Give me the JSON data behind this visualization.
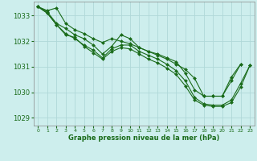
{
  "xlabel": "Graphe pression niveau de la mer (hPa)",
  "bg_color": "#cdeeed",
  "grid_color": "#b0d8d8",
  "line_color": "#1a6b1a",
  "marker_color": "#1a6b1a",
  "xlim": [
    -0.5,
    23.5
  ],
  "ylim": [
    1028.7,
    1033.55
  ],
  "yticks": [
    1029,
    1030,
    1031,
    1032,
    1033
  ],
  "xticks": [
    0,
    1,
    2,
    3,
    4,
    5,
    6,
    7,
    8,
    9,
    10,
    11,
    12,
    13,
    14,
    15,
    16,
    17,
    18,
    19,
    20,
    21,
    22,
    23
  ],
  "series": [
    [
      1033.35,
      1033.2,
      1033.3,
      1032.7,
      1032.45,
      1032.3,
      1032.1,
      1031.95,
      1032.1,
      1032.0,
      1031.9,
      1031.75,
      1031.6,
      1031.45,
      1031.3,
      1031.1,
      1030.9,
      1030.55,
      1029.85,
      1029.85,
      1029.85,
      1030.6,
      1031.1,
      null
    ],
    [
      1033.35,
      1033.15,
      1032.7,
      1032.5,
      1032.25,
      1032.1,
      1031.85,
      1031.5,
      1031.8,
      1032.25,
      1032.1,
      1031.75,
      1031.6,
      1031.5,
      1031.35,
      1031.2,
      1030.75,
      1030.1,
      1029.85,
      1029.85,
      1029.85,
      1030.45,
      1031.1,
      null
    ],
    [
      1033.35,
      1033.1,
      1032.65,
      1032.3,
      1032.1,
      1031.85,
      1031.65,
      1031.35,
      1031.7,
      1031.85,
      1031.85,
      1031.6,
      1031.45,
      1031.3,
      1031.1,
      1030.85,
      1030.45,
      1029.8,
      1029.55,
      1029.5,
      1029.5,
      1029.7,
      1030.35,
      1031.05
    ],
    [
      1033.35,
      1033.1,
      1032.65,
      1032.25,
      1032.15,
      1031.8,
      1031.55,
      1031.3,
      1031.6,
      1031.75,
      1031.7,
      1031.5,
      1031.3,
      1031.15,
      1030.95,
      1030.7,
      1030.25,
      1029.7,
      1029.5,
      1029.45,
      1029.45,
      1029.6,
      1030.2,
      1031.05
    ]
  ]
}
